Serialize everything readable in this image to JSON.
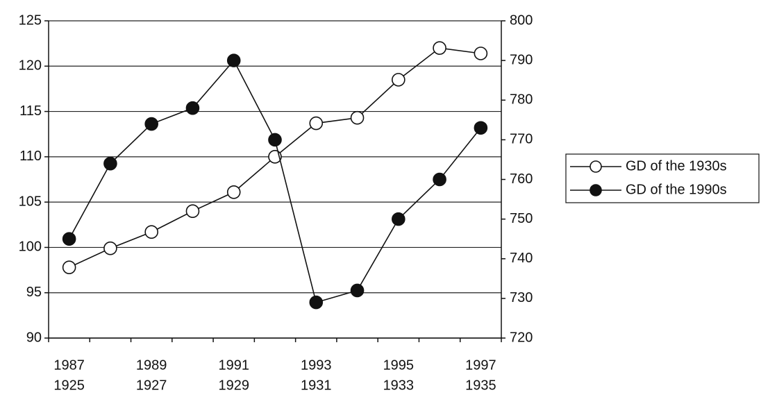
{
  "chart_data": {
    "type": "line",
    "categories": [
      "1987",
      null,
      "1989",
      null,
      "1991",
      null,
      "1993",
      null,
      "1995",
      null,
      "1997"
    ],
    "categories2": [
      "1925",
      null,
      "1927",
      null,
      "1929",
      null,
      "1931",
      null,
      "1933",
      null,
      "1935"
    ],
    "series": [
      {
        "name": "GD of the 1930s",
        "color": "#111111",
        "marker": "hollow",
        "axis": "y",
        "values": [
          97.8,
          99.9,
          101.7,
          104,
          106.1,
          110,
          113.7,
          114.3,
          118.5,
          122,
          121.4
        ]
      },
      {
        "name": "GD of the 1990s",
        "color": "#111111",
        "marker": "filled",
        "axis": "y2",
        "values": [
          745,
          764,
          774,
          778,
          790,
          770,
          729,
          732,
          750,
          760,
          773
        ]
      }
    ],
    "ylim": [
      90,
      125
    ],
    "yticks": [
      90,
      95,
      100,
      105,
      110,
      115,
      120,
      125
    ],
    "y2lim": [
      720,
      800
    ],
    "y2ticks": [
      720,
      730,
      740,
      750,
      760,
      770,
      780,
      790,
      800
    ],
    "grid": true,
    "legend": "right"
  }
}
